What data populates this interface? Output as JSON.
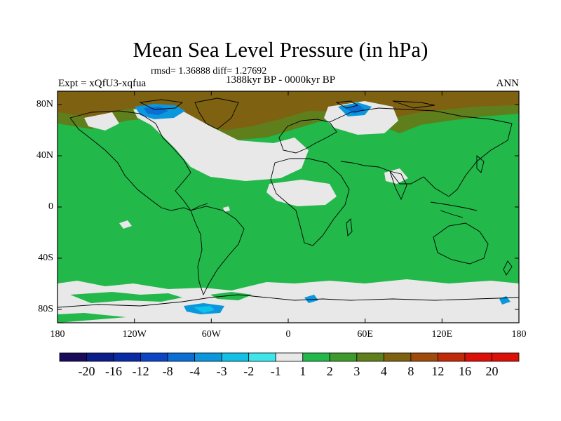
{
  "title": "Mean Sea Level Pressure (in hPa)",
  "stats": "rmsd= 1.36888 diff= 1.27692",
  "period": "1388kyr BP - 0000kyr BP",
  "expt": "Expt = xQfU3-xqfua",
  "season": "ANN",
  "lat_labels": [
    "80N",
    "40N",
    "0",
    "40S",
    "80S"
  ],
  "lon_labels": [
    "180",
    "120W",
    "60W",
    "0",
    "60E",
    "120E",
    "180"
  ],
  "colorbar": {
    "labels": [
      "-20",
      "-16",
      "-12",
      "-8",
      "-4",
      "-3",
      "-2",
      "-1",
      "1",
      "2",
      "3",
      "4",
      "8",
      "12",
      "16",
      "20"
    ],
    "colors": [
      "#1a0a5c",
      "#0a1d8a",
      "#0a2ba6",
      "#0b45c6",
      "#0a6ed4",
      "#0b97dd",
      "#10c0e6",
      "#3ee6ec",
      "#e8e8e8",
      "#22b84a",
      "#3f9a2c",
      "#5f7e1c",
      "#7e6212",
      "#a04a0c",
      "#c02a08",
      "#dc1006"
    ]
  },
  "map_colors": {
    "green": "#22b84a",
    "white": "#e8e8e8",
    "olive": "#5f7e1c",
    "brown": "#7e6212",
    "cyan": "#0b97dd"
  }
}
